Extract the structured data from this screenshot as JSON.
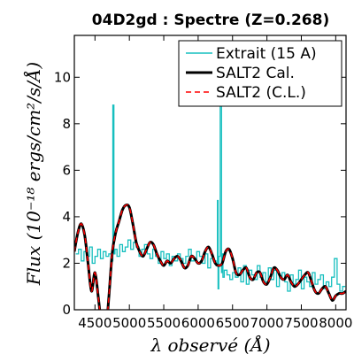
{
  "chart_data": {
    "type": "line",
    "title": "04D2gd : Spectre (Z=0.268)",
    "xlabel": "λ observé (Å)",
    "ylabel": "Flux (10⁻¹⁸ ergs/cm²/s/Å)",
    "xlim": [
      4200,
      8150
    ],
    "ylim": [
      0,
      11.8
    ],
    "x_ticks": [
      4500,
      5000,
      5500,
      6000,
      6500,
      7000,
      7500,
      8000
    ],
    "y_ticks": [
      0,
      2,
      4,
      6,
      8,
      10
    ],
    "grid": false,
    "legend_position": "top-right",
    "series": [
      {
        "name": "Extrait (15 A)",
        "color": "#17bfbf",
        "style": "steps",
        "x": [
          4220,
          4260,
          4300,
          4340,
          4380,
          4420,
          4460,
          4500,
          4540,
          4580,
          4620,
          4660,
          4700,
          4740,
          4760,
          4775,
          4790,
          4820,
          4860,
          4900,
          4940,
          4980,
          5020,
          5060,
          5100,
          5140,
          5180,
          5220,
          5260,
          5300,
          5340,
          5380,
          5420,
          5460,
          5500,
          5540,
          5580,
          5620,
          5660,
          5700,
          5740,
          5780,
          5820,
          5860,
          5900,
          5940,
          5980,
          6020,
          6060,
          6100,
          6140,
          6180,
          6220,
          6260,
          6280,
          6290,
          6300,
          6320,
          6340,
          6350,
          6360,
          6380,
          6420,
          6460,
          6500,
          6540,
          6580,
          6620,
          6660,
          6700,
          6740,
          6780,
          6820,
          6860,
          6900,
          6940,
          6980,
          7020,
          7060,
          7100,
          7140,
          7180,
          7220,
          7260,
          7300,
          7340,
          7380,
          7420,
          7460,
          7500,
          7540,
          7580,
          7620,
          7660,
          7700,
          7740,
          7780,
          7820,
          7860,
          7900,
          7940,
          7980,
          8020,
          8060,
          8100
        ],
        "y": [
          2.4,
          2.6,
          2.1,
          2.5,
          2.3,
          2.7,
          2.0,
          2.3,
          2.6,
          2.2,
          2.5,
          2.3,
          2.4,
          2.1,
          8.8,
          2.4,
          2.6,
          2.3,
          2.8,
          2.5,
          2.7,
          3.0,
          2.6,
          2.9,
          2.7,
          2.3,
          2.6,
          2.8,
          2.4,
          2.2,
          2.6,
          2.3,
          2.0,
          2.5,
          2.2,
          2.4,
          1.9,
          2.3,
          2.1,
          2.4,
          2.2,
          2.0,
          2.3,
          2.6,
          2.1,
          2.2,
          2.5,
          2.3,
          2.0,
          2.4,
          1.8,
          2.2,
          2.1,
          1.9,
          4.7,
          0.9,
          2.3,
          11.1,
          1.6,
          2.4,
          1.4,
          1.7,
          1.5,
          1.3,
          1.6,
          1.4,
          1.8,
          1.2,
          1.9,
          1.1,
          1.7,
          1.5,
          1.3,
          1.9,
          1.4,
          1.6,
          1.2,
          1.8,
          1.3,
          1.7,
          1.0,
          1.4,
          1.6,
          1.2,
          0.8,
          1.5,
          1.1,
          1.3,
          1.7,
          0.9,
          1.4,
          1.2,
          1.0,
          1.6,
          1.1,
          1.3,
          1.5,
          0.9,
          1.2,
          1.0,
          1.4,
          2.2,
          1.1,
          0.8,
          1.0
        ]
      },
      {
        "name": "SALT2 Cal.",
        "color": "#000000",
        "style": "solid",
        "x": [
          4200,
          4250,
          4300,
          4350,
          4400,
          4450,
          4500,
          4550,
          4600,
          4650,
          4700,
          4750,
          4800,
          4850,
          4900,
          4950,
          5000,
          5050,
          5100,
          5150,
          5200,
          5250,
          5300,
          5350,
          5400,
          5450,
          5500,
          5550,
          5600,
          5650,
          5700,
          5750,
          5800,
          5850,
          5900,
          5950,
          6000,
          6050,
          6100,
          6150,
          6200,
          6250,
          6300,
          6350,
          6400,
          6450,
          6500,
          6550,
          6600,
          6650,
          6700,
          6750,
          6800,
          6850,
          6900,
          6950,
          7000,
          7050,
          7100,
          7150,
          7200,
          7250,
          7300,
          7350,
          7400,
          7450,
          7500,
          7550,
          7600,
          7650,
          7700,
          7750,
          7800,
          7850,
          7900,
          7950,
          8000,
          8050,
          8100,
          8150
        ],
        "y": [
          2.5,
          3.3,
          3.7,
          3.2,
          2.0,
          0.8,
          1.6,
          0.5,
          -0.8,
          -1.2,
          0.5,
          2.4,
          3.3,
          3.8,
          4.3,
          4.5,
          4.4,
          3.7,
          2.9,
          2.5,
          2.3,
          2.6,
          2.9,
          2.8,
          2.4,
          2.1,
          1.9,
          2.1,
          2.0,
          2.2,
          2.3,
          2.1,
          1.8,
          1.9,
          2.3,
          2.2,
          2.0,
          2.1,
          2.5,
          2.7,
          2.4,
          2.0,
          1.9,
          2.0,
          2.5,
          2.6,
          2.2,
          1.6,
          1.5,
          1.7,
          1.8,
          1.4,
          1.3,
          1.6,
          1.6,
          1.2,
          1.1,
          1.4,
          1.8,
          1.7,
          1.4,
          1.3,
          1.5,
          1.2,
          1.0,
          1.1,
          1.3,
          1.5,
          1.6,
          1.2,
          0.8,
          0.7,
          0.9,
          1.0,
          0.7,
          0.4,
          0.6,
          0.7,
          0.7,
          0.8
        ]
      },
      {
        "name": "SALT2 (C.L.)",
        "color": "#ff0000",
        "style": "dashed",
        "x": [
          4200,
          4250,
          4300,
          4350,
          4400,
          4450,
          4500,
          4550,
          4600,
          4650,
          4700,
          4750,
          4800,
          4850,
          4900,
          4950,
          5000,
          5050,
          5100,
          5150,
          5200,
          5250,
          5300,
          5350,
          5400,
          5450,
          5500,
          5550,
          5600,
          5650,
          5700,
          5750,
          5800,
          5850,
          5900,
          5950,
          6000,
          6050,
          6100,
          6150,
          6200,
          6250,
          6300,
          6350,
          6400,
          6450,
          6500,
          6550,
          6600,
          6650,
          6700,
          6750,
          6800,
          6850,
          6900,
          6950,
          7000,
          7050,
          7100,
          7150,
          7200,
          7250,
          7300,
          7350,
          7400,
          7450,
          7500,
          7550,
          7600,
          7650,
          7700,
          7750,
          7800,
          7850,
          7900,
          7950,
          8000,
          8050,
          8100,
          8150
        ],
        "y": [
          2.5,
          3.3,
          3.7,
          3.2,
          2.0,
          0.8,
          1.6,
          0.5,
          -0.8,
          -1.2,
          0.5,
          2.4,
          3.3,
          3.8,
          4.3,
          4.5,
          4.4,
          3.7,
          2.9,
          2.5,
          2.3,
          2.6,
          2.9,
          2.8,
          2.4,
          2.1,
          1.9,
          2.1,
          2.0,
          2.2,
          2.3,
          2.1,
          1.8,
          1.9,
          2.3,
          2.2,
          2.0,
          2.1,
          2.5,
          2.7,
          2.4,
          2.0,
          1.9,
          2.0,
          2.5,
          2.6,
          2.2,
          1.6,
          1.5,
          1.7,
          1.8,
          1.4,
          1.3,
          1.6,
          1.6,
          1.2,
          1.1,
          1.4,
          1.8,
          1.7,
          1.4,
          1.3,
          1.5,
          1.2,
          1.0,
          1.1,
          1.3,
          1.5,
          1.6,
          1.2,
          0.8,
          0.7,
          0.9,
          1.0,
          0.7,
          0.4,
          0.6,
          0.7,
          0.7,
          0.8
        ]
      }
    ]
  }
}
